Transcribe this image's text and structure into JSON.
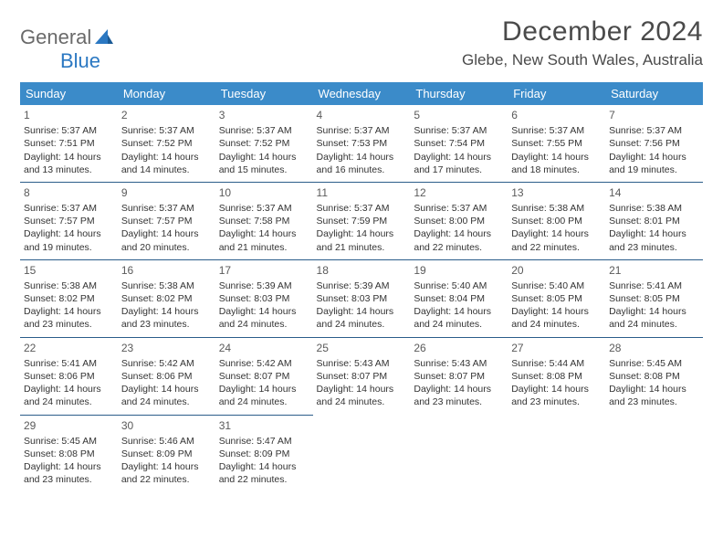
{
  "logo": {
    "text1": "General",
    "text2": "Blue"
  },
  "title": "December 2024",
  "location": "Glebe, New South Wales, Australia",
  "colors": {
    "header_bg": "#3b8bc9",
    "header_text": "#ffffff",
    "cell_border": "#2b5d8a",
    "page_bg": "#ffffff",
    "text": "#333333",
    "logo_gray": "#6a6a6a",
    "logo_blue": "#2b78c2"
  },
  "daynames": [
    "Sunday",
    "Monday",
    "Tuesday",
    "Wednesday",
    "Thursday",
    "Friday",
    "Saturday"
  ],
  "weeks": [
    [
      {
        "n": "1",
        "sr": "5:37 AM",
        "ss": "7:51 PM",
        "dl": "14 hours and 13 minutes."
      },
      {
        "n": "2",
        "sr": "5:37 AM",
        "ss": "7:52 PM",
        "dl": "14 hours and 14 minutes."
      },
      {
        "n": "3",
        "sr": "5:37 AM",
        "ss": "7:52 PM",
        "dl": "14 hours and 15 minutes."
      },
      {
        "n": "4",
        "sr": "5:37 AM",
        "ss": "7:53 PM",
        "dl": "14 hours and 16 minutes."
      },
      {
        "n": "5",
        "sr": "5:37 AM",
        "ss": "7:54 PM",
        "dl": "14 hours and 17 minutes."
      },
      {
        "n": "6",
        "sr": "5:37 AM",
        "ss": "7:55 PM",
        "dl": "14 hours and 18 minutes."
      },
      {
        "n": "7",
        "sr": "5:37 AM",
        "ss": "7:56 PM",
        "dl": "14 hours and 19 minutes."
      }
    ],
    [
      {
        "n": "8",
        "sr": "5:37 AM",
        "ss": "7:57 PM",
        "dl": "14 hours and 19 minutes."
      },
      {
        "n": "9",
        "sr": "5:37 AM",
        "ss": "7:57 PM",
        "dl": "14 hours and 20 minutes."
      },
      {
        "n": "10",
        "sr": "5:37 AM",
        "ss": "7:58 PM",
        "dl": "14 hours and 21 minutes."
      },
      {
        "n": "11",
        "sr": "5:37 AM",
        "ss": "7:59 PM",
        "dl": "14 hours and 21 minutes."
      },
      {
        "n": "12",
        "sr": "5:37 AM",
        "ss": "8:00 PM",
        "dl": "14 hours and 22 minutes."
      },
      {
        "n": "13",
        "sr": "5:38 AM",
        "ss": "8:00 PM",
        "dl": "14 hours and 22 minutes."
      },
      {
        "n": "14",
        "sr": "5:38 AM",
        "ss": "8:01 PM",
        "dl": "14 hours and 23 minutes."
      }
    ],
    [
      {
        "n": "15",
        "sr": "5:38 AM",
        "ss": "8:02 PM",
        "dl": "14 hours and 23 minutes."
      },
      {
        "n": "16",
        "sr": "5:38 AM",
        "ss": "8:02 PM",
        "dl": "14 hours and 23 minutes."
      },
      {
        "n": "17",
        "sr": "5:39 AM",
        "ss": "8:03 PM",
        "dl": "14 hours and 24 minutes."
      },
      {
        "n": "18",
        "sr": "5:39 AM",
        "ss": "8:03 PM",
        "dl": "14 hours and 24 minutes."
      },
      {
        "n": "19",
        "sr": "5:40 AM",
        "ss": "8:04 PM",
        "dl": "14 hours and 24 minutes."
      },
      {
        "n": "20",
        "sr": "5:40 AM",
        "ss": "8:05 PM",
        "dl": "14 hours and 24 minutes."
      },
      {
        "n": "21",
        "sr": "5:41 AM",
        "ss": "8:05 PM",
        "dl": "14 hours and 24 minutes."
      }
    ],
    [
      {
        "n": "22",
        "sr": "5:41 AM",
        "ss": "8:06 PM",
        "dl": "14 hours and 24 minutes."
      },
      {
        "n": "23",
        "sr": "5:42 AM",
        "ss": "8:06 PM",
        "dl": "14 hours and 24 minutes."
      },
      {
        "n": "24",
        "sr": "5:42 AM",
        "ss": "8:07 PM",
        "dl": "14 hours and 24 minutes."
      },
      {
        "n": "25",
        "sr": "5:43 AM",
        "ss": "8:07 PM",
        "dl": "14 hours and 24 minutes."
      },
      {
        "n": "26",
        "sr": "5:43 AM",
        "ss": "8:07 PM",
        "dl": "14 hours and 23 minutes."
      },
      {
        "n": "27",
        "sr": "5:44 AM",
        "ss": "8:08 PM",
        "dl": "14 hours and 23 minutes."
      },
      {
        "n": "28",
        "sr": "5:45 AM",
        "ss": "8:08 PM",
        "dl": "14 hours and 23 minutes."
      }
    ],
    [
      {
        "n": "29",
        "sr": "5:45 AM",
        "ss": "8:08 PM",
        "dl": "14 hours and 23 minutes."
      },
      {
        "n": "30",
        "sr": "5:46 AM",
        "ss": "8:09 PM",
        "dl": "14 hours and 22 minutes."
      },
      {
        "n": "31",
        "sr": "5:47 AM",
        "ss": "8:09 PM",
        "dl": "14 hours and 22 minutes."
      },
      null,
      null,
      null,
      null
    ]
  ],
  "labels": {
    "sunrise": "Sunrise:",
    "sunset": "Sunset:",
    "daylight": "Daylight:"
  }
}
